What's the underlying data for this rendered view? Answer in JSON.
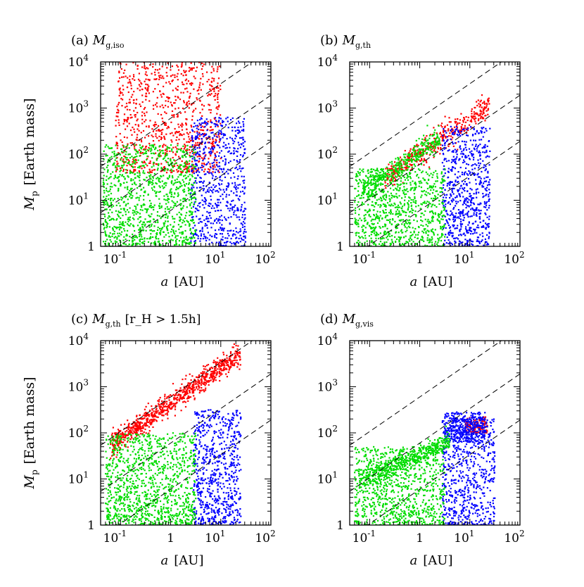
{
  "colors": {
    "gas_giant": "#ff0000",
    "icy": "#0000ff",
    "rocky": "#00dd00",
    "axis": "#000000",
    "guide": "#000000"
  },
  "figure": {
    "ylabel_symbol": "M",
    "ylabel_sub": "p",
    "ylabel_text": "[Earth mass]",
    "xlabel_symbol": "a",
    "xlabel_text": "[AU]"
  },
  "chart_data": [
    {
      "panel_id": "a",
      "panel_label": "(a)",
      "title_symbol": "M",
      "title_sub": "g,iso",
      "title_extra": "",
      "type": "scatter",
      "xscale": "log",
      "yscale": "log",
      "xlim": [
        0.04,
        100
      ],
      "ylim": [
        1,
        10000
      ],
      "x_ticks": [
        {
          "v": 0.1,
          "base": "10",
          "exp": "-1"
        },
        {
          "v": 1,
          "base": "1",
          "exp": ""
        },
        {
          "v": 10,
          "base": "10",
          "exp": "1"
        },
        {
          "v": 100,
          "base": "10",
          "exp": "2"
        }
      ],
      "y_ticks": [
        {
          "v": 1,
          "base": "1",
          "exp": ""
        },
        {
          "v": 10,
          "base": "10",
          "exp": "1"
        },
        {
          "v": 100,
          "base": "10",
          "exp": "2"
        },
        {
          "v": 1000,
          "base": "10",
          "exp": "3"
        },
        {
          "v": 10000,
          "base": "10",
          "exp": "4"
        }
      ],
      "guide_lines_y_at_x1": [
        6,
        60,
        600
      ],
      "guide_slope": 0.75,
      "clusters": [
        {
          "name": "gas giants",
          "color_key": "gas_giant",
          "n": 900,
          "logx": [
            -1.1,
            1.0
          ],
          "logy": [
            1.6,
            4.0
          ],
          "shape": "cloud"
        },
        {
          "name": "icy planets",
          "color_key": "icy",
          "n": 700,
          "logx": [
            0.4,
            1.5
          ],
          "logy": [
            0.0,
            2.8
          ],
          "shape": "cloud"
        },
        {
          "name": "rocky planets",
          "color_key": "rocky",
          "n": 1100,
          "logx": [
            -1.35,
            0.5
          ],
          "logy": [
            0.0,
            2.2
          ],
          "shape": "cloud"
        }
      ]
    },
    {
      "panel_id": "b",
      "panel_label": "(b)",
      "title_symbol": "M",
      "title_sub": "g,th",
      "title_extra": "",
      "type": "scatter",
      "xscale": "log",
      "yscale": "log",
      "xlim": [
        0.04,
        100
      ],
      "ylim": [
        1,
        10000
      ],
      "x_ticks": [
        {
          "v": 0.1,
          "base": "10",
          "exp": "-1"
        },
        {
          "v": 1,
          "base": "1",
          "exp": ""
        },
        {
          "v": 10,
          "base": "10",
          "exp": "1"
        },
        {
          "v": 100,
          "base": "10",
          "exp": "2"
        }
      ],
      "y_ticks": [
        {
          "v": 1,
          "base": "1",
          "exp": ""
        },
        {
          "v": 10,
          "base": "10",
          "exp": "1"
        },
        {
          "v": 100,
          "base": "10",
          "exp": "2"
        },
        {
          "v": 1000,
          "base": "10",
          "exp": "3"
        },
        {
          "v": 10000,
          "base": "10",
          "exp": "4"
        }
      ],
      "guide_lines_y_at_x1": [
        6,
        60,
        600
      ],
      "guide_slope": 0.75,
      "clusters": [
        {
          "name": "gas giants",
          "color_key": "gas_giant",
          "n": 450,
          "logx": [
            -0.7,
            1.4
          ],
          "logy_band": [
            2.0,
            0.75,
            0.14
          ],
          "shape": "band"
        },
        {
          "name": "icy planets",
          "color_key": "icy",
          "n": 700,
          "logx": [
            0.45,
            1.4
          ],
          "logy": [
            0.0,
            2.6
          ],
          "shape": "cloud"
        },
        {
          "name": "rocky planets (band)",
          "color_key": "rocky",
          "n": 350,
          "logx": [
            -1.15,
            0.4
          ],
          "logy_band": [
            2.05,
            0.75,
            0.12
          ],
          "shape": "band"
        },
        {
          "name": "rocky planets",
          "color_key": "rocky",
          "n": 900,
          "logx": [
            -1.3,
            0.5
          ],
          "logy": [
            0.0,
            1.7
          ],
          "shape": "cloud"
        }
      ]
    },
    {
      "panel_id": "c",
      "panel_label": "(c)",
      "title_symbol": "M",
      "title_sub": "g,th",
      "title_extra": "[r_H > 1.5h]",
      "type": "scatter",
      "xscale": "log",
      "yscale": "log",
      "xlim": [
        0.04,
        100
      ],
      "ylim": [
        1,
        10000
      ],
      "x_ticks": [
        {
          "v": 0.1,
          "base": "10",
          "exp": "-1"
        },
        {
          "v": 1,
          "base": "1",
          "exp": ""
        },
        {
          "v": 10,
          "base": "10",
          "exp": "1"
        },
        {
          "v": 100,
          "base": "10",
          "exp": "2"
        }
      ],
      "y_ticks": [
        {
          "v": 1,
          "base": "1",
          "exp": ""
        },
        {
          "v": 10,
          "base": "10",
          "exp": "1"
        },
        {
          "v": 100,
          "base": "10",
          "exp": "2"
        },
        {
          "v": 1000,
          "base": "10",
          "exp": "3"
        },
        {
          "v": 10000,
          "base": "10",
          "exp": "4"
        }
      ],
      "guide_lines_y_at_x1": [
        6,
        60,
        600
      ],
      "guide_slope": 0.75,
      "clusters": [
        {
          "name": "gas giants",
          "color_key": "gas_giant",
          "n": 900,
          "logx": [
            -1.2,
            1.4
          ],
          "logy_band": [
            2.65,
            0.75,
            0.12
          ],
          "shape": "band"
        },
        {
          "name": "icy planets",
          "color_key": "icy",
          "n": 700,
          "logx": [
            0.45,
            1.4
          ],
          "logy": [
            0.0,
            2.5
          ],
          "shape": "cloud"
        },
        {
          "name": "rocky planets",
          "color_key": "rocky",
          "n": 1100,
          "logx": [
            -1.3,
            0.5
          ],
          "logy": [
            0.0,
            2.0
          ],
          "shape": "cloud"
        }
      ]
    },
    {
      "panel_id": "d",
      "panel_label": "(d)",
      "title_symbol": "M",
      "title_sub": "g,vis",
      "title_extra": "",
      "type": "scatter",
      "xscale": "log",
      "yscale": "log",
      "xlim": [
        0.04,
        100
      ],
      "ylim": [
        1,
        10000
      ],
      "x_ticks": [
        {
          "v": 0.1,
          "base": "10",
          "exp": "-1"
        },
        {
          "v": 1,
          "base": "1",
          "exp": ""
        },
        {
          "v": 10,
          "base": "10",
          "exp": "1"
        },
        {
          "v": 100,
          "base": "10",
          "exp": "2"
        }
      ],
      "y_ticks": [
        {
          "v": 1,
          "base": "1",
          "exp": ""
        },
        {
          "v": 10,
          "base": "10",
          "exp": "1"
        },
        {
          "v": 100,
          "base": "10",
          "exp": "2"
        },
        {
          "v": 1000,
          "base": "10",
          "exp": "3"
        },
        {
          "v": 10000,
          "base": "10",
          "exp": "4"
        }
      ],
      "guide_lines_y_at_x1": [
        6,
        60,
        600
      ],
      "guide_slope": 0.75,
      "clusters": [
        {
          "name": "gas giants",
          "color_key": "gas_giant",
          "n": 120,
          "logx": [
            0.9,
            1.35
          ],
          "logy": [
            2.0,
            2.35
          ],
          "shape": "cloud"
        },
        {
          "name": "icy planets (spray)",
          "color_key": "icy",
          "n": 350,
          "logx": [
            0.5,
            1.3
          ],
          "logy": [
            1.8,
            2.45
          ],
          "shape": "cloud"
        },
        {
          "name": "icy planets",
          "color_key": "icy",
          "n": 650,
          "logx": [
            0.45,
            1.5
          ],
          "logy": [
            0.0,
            2.3
          ],
          "shape": "cloud"
        },
        {
          "name": "rocky planets (band)",
          "color_key": "rocky",
          "n": 450,
          "logx": [
            -1.2,
            0.6
          ],
          "logy_band": [
            1.55,
            0.5,
            0.1
          ],
          "shape": "band"
        },
        {
          "name": "rocky planets",
          "color_key": "rocky",
          "n": 900,
          "logx": [
            -1.3,
            0.5
          ],
          "logy": [
            0.0,
            1.7
          ],
          "shape": "cloud"
        }
      ]
    }
  ]
}
